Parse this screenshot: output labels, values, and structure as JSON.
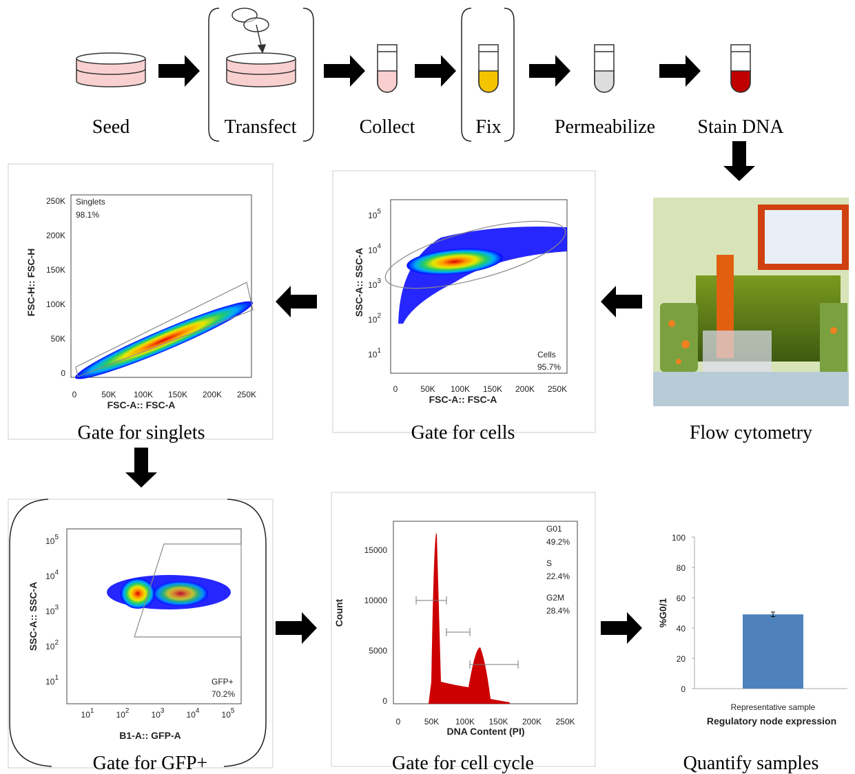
{
  "steps": [
    "Seed",
    "Transfect",
    "Collect",
    "Fix",
    "Permeabilize",
    "Stain DNA"
  ],
  "panels": {
    "singlets": {
      "label": "Gate for singlets",
      "x_axis": "FSC-A:: FSC-A",
      "y_axis": "FSC-H:: FSC-H",
      "x_ticks": [
        "0",
        "50K",
        "100K",
        "150K",
        "200K",
        "250K"
      ],
      "y_ticks": [
        "0",
        "50K",
        "100K",
        "150K",
        "200K",
        "250K"
      ],
      "gate": "Singlets",
      "gate_value": "98.1%"
    },
    "cells": {
      "label": "Gate for cells",
      "x_axis": "FSC-A:: FSC-A",
      "y_axis": "SSC-A:: SSC-A",
      "x_ticks": [
        "0",
        "50K",
        "100K",
        "150K",
        "200K",
        "250K"
      ],
      "tick_base": "10",
      "y_ticks_exp": [
        "1",
        "2",
        "3",
        "4",
        "5"
      ],
      "gate": "Cells",
      "gate_value": "95.7%"
    },
    "cytometer": {
      "label": "Flow cytometry"
    },
    "gfp": {
      "label": "Gate for GFP+",
      "x_axis": "B1-A:: GFP-A",
      "y_axis": "SSC-A:: SSC-A",
      "tick_base": "10",
      "x_ticks_exp": [
        "1",
        "2",
        "3",
        "4",
        "5"
      ],
      "y_ticks_exp": [
        "1",
        "2",
        "3",
        "4",
        "5"
      ],
      "gate": "GFP+",
      "gate_value": "70.2%"
    },
    "cell_cycle": {
      "label": "Gate for cell cycle",
      "x_axis": "DNA Content (PI)",
      "y_axis": "Count",
      "x_ticks": [
        "0",
        "50K",
        "100K",
        "150K",
        "200K",
        "250K"
      ],
      "y_ticks": [
        "0",
        "5000",
        "10000",
        "15000"
      ],
      "gates": [
        {
          "name": "G01",
          "value": "49.2%"
        },
        {
          "name": "S",
          "value": "22.4%"
        },
        {
          "name": "G2M",
          "value": "28.4%"
        }
      ]
    },
    "quantify": {
      "label": "Quantify samples",
      "y_axis": "%G0/1",
      "ylim": [
        0,
        100
      ],
      "yticks": [
        0,
        20,
        40,
        60,
        80,
        100
      ],
      "category": "Representative sample",
      "x_axis": "Regulatory node expression",
      "value": 49,
      "error": 1.5,
      "color": "#4f81bd"
    }
  }
}
